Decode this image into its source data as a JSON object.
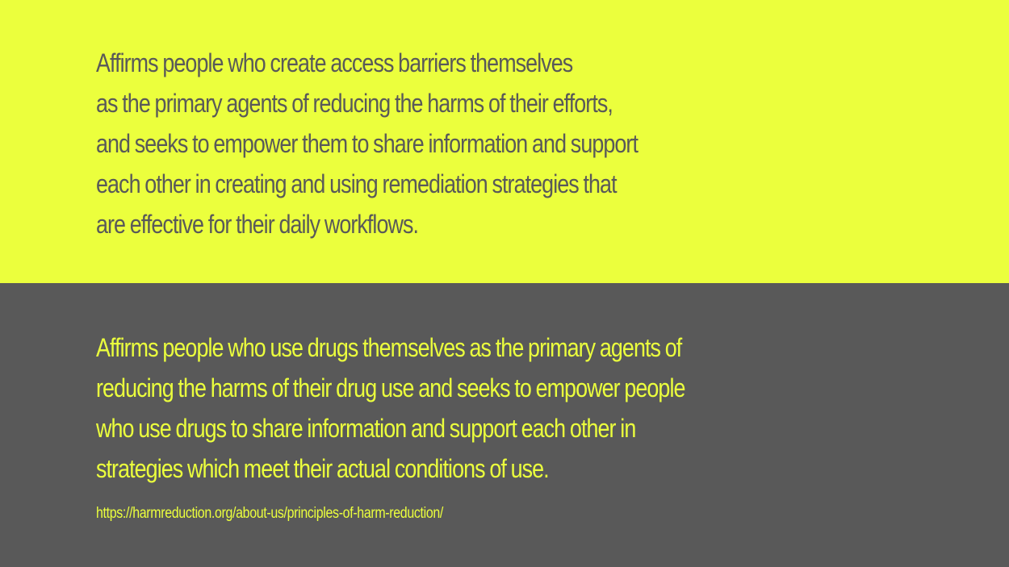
{
  "top_quote": {
    "lines": [
      "Affirms people who create access barriers themselves",
      "as the primary agents of reducing the harms of their efforts,",
      "and seeks to empower them to share information and support",
      "each other in creating and using remediation strategies that",
      "are effective for their daily workflows."
    ]
  },
  "bottom_quote": {
    "lines": [
      "Affirms people who use drugs themselves as the primary agents of",
      "reducing the harms of their drug use and seeks to empower people",
      "who use drugs to share information and support each other in",
      "strategies which meet their actual conditions of use."
    ]
  },
  "source": {
    "url": "https://harmreduction.org/about-us/principles-of-harm-reduction/"
  },
  "colors": {
    "yellow": "#ebff3d",
    "gray": "#595959"
  }
}
